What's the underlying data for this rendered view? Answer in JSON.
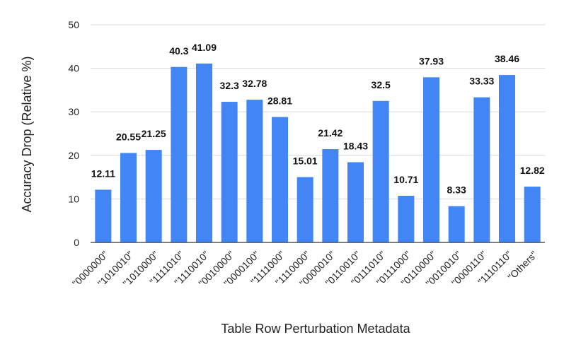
{
  "chart_data": {
    "type": "bar",
    "title": "",
    "xlabel": "Table Row Perturbation Metadata",
    "ylabel": "Accuracy Drop (Relative %)",
    "ylim": [
      0,
      50
    ],
    "yticks": [
      0,
      10,
      20,
      30,
      40,
      50
    ],
    "grid": true,
    "categories": [
      "\"0000000\"",
      "\"1010010\"",
      "\"1010000\"",
      "\"1111010\"",
      "\"1110010\"",
      "\"0010000\"",
      "\"0000100\"",
      "\"1111000\"",
      "\"1110000\"",
      "\"0000010\"",
      "\"0110010\"",
      "\"0111010\"",
      "\"0111000\"",
      "\"0110000\"",
      "\"0010010\"",
      "\"0000110\"",
      "\"1110110\"",
      "\"Others\""
    ],
    "values": [
      12.11,
      20.55,
      21.25,
      40.3,
      41.09,
      32.3,
      32.78,
      28.81,
      15.01,
      21.42,
      18.43,
      32.5,
      10.71,
      37.93,
      8.33,
      33.33,
      38.46,
      12.82
    ],
    "data_labels": [
      "12.11",
      "20.55",
      "21.25",
      "40.3",
      "41.09",
      "32.3",
      "32.78",
      "28.81",
      "15.01",
      "21.42",
      "18.43",
      "32.5",
      "10.71",
      "37.93",
      "8.33",
      "33.33",
      "38.46",
      "12.82"
    ],
    "bar_color": "#4285f4",
    "grid_color": "#d9d9d9",
    "axis_color": "#333333"
  }
}
